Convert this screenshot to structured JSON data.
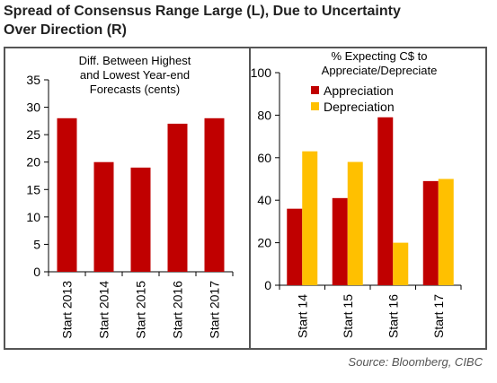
{
  "title": {
    "line1": "Spread of Consensus Range Large (L), Due to Uncertainty",
    "line2": "Over Direction (R)"
  },
  "source": "Source: Bloomberg, CIBC",
  "colors": {
    "red": "#C00000",
    "yellow": "#FFC000",
    "axis": "#000000",
    "frame": "#555555"
  },
  "chart_data": [
    {
      "type": "bar",
      "title": [
        "Diff. Between Highest",
        "and Lowest Year-end",
        "Forecasts (cents)"
      ],
      "categories": [
        "Start 2013",
        "Start 2014",
        "Start 2015",
        "Start 2016",
        "Start 2017"
      ],
      "values": [
        28,
        20,
        19,
        27,
        28
      ],
      "ylim": [
        0,
        35
      ],
      "yticks": [
        0,
        5,
        10,
        15,
        20,
        25,
        30,
        35
      ],
      "color": "#C00000",
      "grid": false
    },
    {
      "type": "bar",
      "title": [
        "% Expecting C$ to",
        "Appreciate/Depreciate"
      ],
      "categories": [
        "Start 14",
        "Start 15",
        "Start 16",
        "Start 17"
      ],
      "series": [
        {
          "name": "Appreciation",
          "values": [
            36,
            41,
            79,
            49
          ],
          "color": "#C00000"
        },
        {
          "name": "Depreciation",
          "values": [
            63,
            58,
            20,
            50
          ],
          "color": "#FFC000"
        }
      ],
      "ylim": [
        0,
        100
      ],
      "yticks": [
        0,
        20,
        40,
        60,
        80,
        100
      ],
      "legend": "top-left",
      "grid": false
    }
  ]
}
